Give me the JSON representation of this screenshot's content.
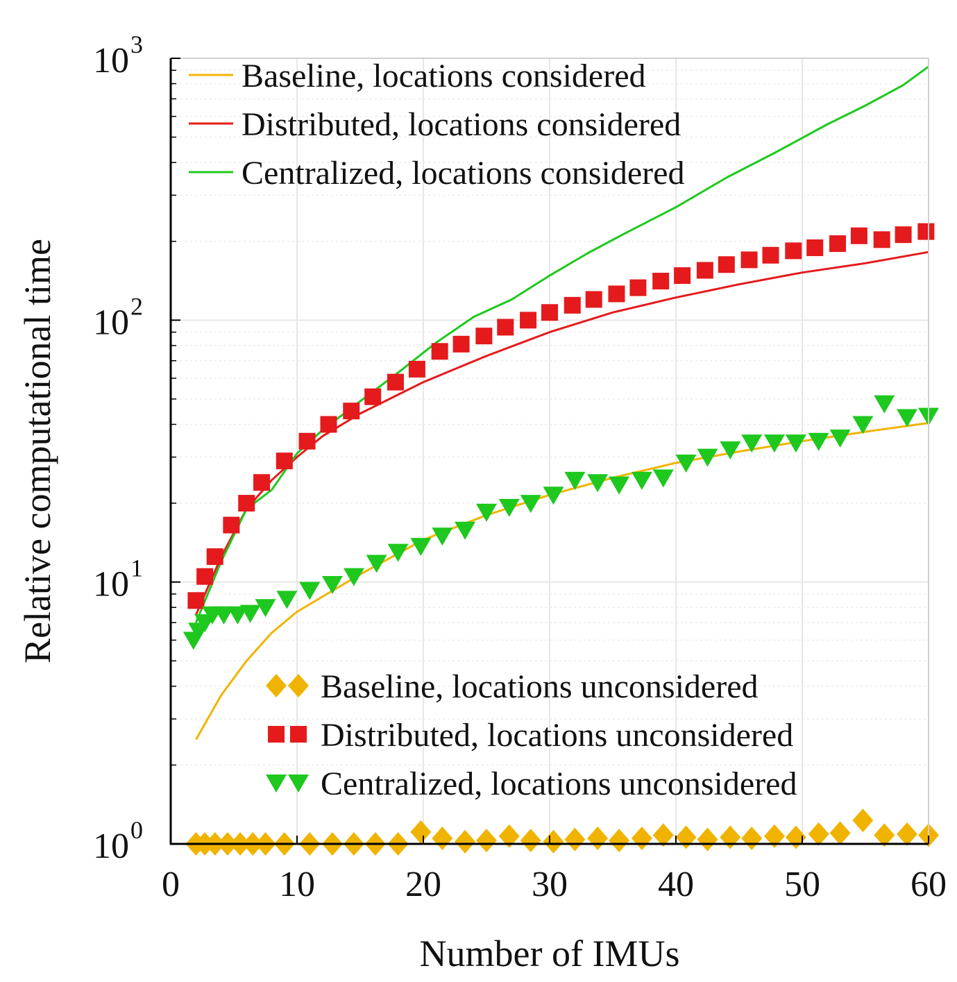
{
  "chart_data": {
    "type": "line+scatter",
    "xlabel": "Number of IMUs",
    "ylabel": "Relative computational time",
    "xscale": "linear",
    "yscale": "log",
    "xlim": [
      0,
      60
    ],
    "ylim": [
      1,
      1000
    ],
    "xticks": [
      0,
      10,
      20,
      30,
      40,
      50,
      60
    ],
    "yticks": [
      {
        "value": 1,
        "base": "10",
        "exp": "0"
      },
      {
        "value": 10,
        "base": "10",
        "exp": "1"
      },
      {
        "value": 100,
        "base": "10",
        "exp": "2"
      },
      {
        "value": 1000,
        "base": "10",
        "exp": "3"
      }
    ],
    "grid": true,
    "legends": [
      {
        "placement": "top-left",
        "entries": [
          "Baseline, locations considered",
          "Distributed, locations considered",
          "Centralized, locations considered"
        ]
      },
      {
        "placement": "bottom-center",
        "entries": [
          "Baseline, locations unconsidered",
          "Distributed, locations unconsidered",
          "Centralized, locations unconsidered"
        ]
      }
    ],
    "series": [
      {
        "name": "Baseline, locations considered",
        "kind": "line",
        "color": "#f0b400",
        "x": [
          2,
          4,
          6,
          8,
          10,
          15,
          20,
          25,
          30,
          35,
          40,
          45,
          50,
          55,
          60
        ],
        "y": [
          2.5,
          3.7,
          5.0,
          6.4,
          7.7,
          10.7,
          14.5,
          18.0,
          21.5,
          25.0,
          28.5,
          31.5,
          34.5,
          37.5,
          40.5
        ]
      },
      {
        "name": "Distributed, locations considered",
        "kind": "line",
        "color": "#e41a1c",
        "x": [
          2,
          4,
          6,
          8,
          10,
          12,
          15,
          20,
          25,
          30,
          35,
          40,
          45,
          50,
          55,
          60
        ],
        "y": [
          7.5,
          12.5,
          19.0,
          24.5,
          30.0,
          36.0,
          44.0,
          58.0,
          73.0,
          90.0,
          107.0,
          122.0,
          137.0,
          152.0,
          165.0,
          182.0
        ]
      },
      {
        "name": "Centralized, locations considered",
        "kind": "line",
        "color": "#1ec81e",
        "x": [
          2,
          4,
          6,
          8,
          10,
          12,
          15,
          18,
          21,
          24,
          27,
          30,
          33,
          36,
          40,
          44,
          48,
          52,
          55,
          58,
          60
        ],
        "y": [
          7.0,
          12.0,
          19.0,
          22.5,
          31.0,
          38.0,
          49.0,
          63.0,
          82.0,
          103.0,
          120.0,
          148.0,
          180.0,
          215.0,
          270.0,
          350.0,
          440.0,
          560.0,
          660.0,
          790.0,
          930.0
        ]
      },
      {
        "name": "Baseline, locations unconsidered",
        "kind": "marker",
        "marker": "diamond",
        "color": "#f0b400",
        "x": [
          2,
          2.7,
          3.5,
          4.5,
          5.5,
          6.5,
          7.5,
          9,
          11,
          12.8,
          14.5,
          16.2,
          18,
          19.8,
          21.5,
          23.3,
          25,
          26.8,
          28.5,
          30.3,
          32,
          33.8,
          35.5,
          37.3,
          39,
          40.8,
          42.5,
          44.3,
          46,
          47.8,
          49.5,
          51.3,
          53,
          54.8,
          56.5,
          58.3,
          60
        ],
        "y": [
          1.0,
          1.0,
          1.0,
          1.0,
          1.0,
          1.0,
          1.0,
          1.0,
          1.0,
          1.0,
          1.0,
          1.0,
          1.0,
          1.11,
          1.05,
          1.02,
          1.03,
          1.07,
          1.03,
          1.02,
          1.04,
          1.05,
          1.03,
          1.05,
          1.08,
          1.06,
          1.04,
          1.06,
          1.05,
          1.07,
          1.06,
          1.09,
          1.1,
          1.23,
          1.08,
          1.09,
          1.08
        ]
      },
      {
        "name": "Distributed, locations unconsidered",
        "kind": "marker",
        "marker": "square",
        "color": "#e41a1c",
        "x": [
          2,
          2.7,
          3.5,
          4.8,
          6,
          7.2,
          9,
          10.8,
          12.5,
          14.3,
          16,
          17.8,
          19.5,
          21.3,
          23,
          24.8,
          26.5,
          28.3,
          30,
          31.8,
          33.5,
          35.3,
          37,
          38.8,
          40.5,
          42.3,
          44,
          45.8,
          47.5,
          49.3,
          51,
          52.8,
          54.5,
          56.3,
          58,
          59.8
        ],
        "y": [
          8.5,
          10.5,
          12.5,
          16.5,
          20.0,
          24.0,
          29.0,
          34.5,
          40.0,
          45.0,
          51.0,
          58.0,
          65.0,
          76.0,
          81.0,
          87.0,
          94.0,
          100.0,
          107.0,
          114.0,
          120.0,
          126.0,
          133.0,
          141.0,
          148.0,
          155.0,
          163.0,
          170.0,
          177.0,
          184.0,
          189.0,
          196.0,
          210.0,
          203.0,
          212.0,
          218.0
        ]
      },
      {
        "name": "Centralized, locations unconsidered",
        "kind": "marker",
        "marker": "triangle-down",
        "color": "#1ec81e",
        "x": [
          1.8,
          2.2,
          2.7,
          3.3,
          4.2,
          5.3,
          6.3,
          7.5,
          9.2,
          11,
          12.8,
          14.5,
          16.3,
          18,
          19.8,
          21.5,
          23.3,
          25,
          26.8,
          28.5,
          30.3,
          32,
          33.8,
          35.5,
          37.3,
          39,
          40.8,
          42.5,
          44.3,
          46,
          47.8,
          49.5,
          51.3,
          53,
          54.8,
          56.5,
          58.3,
          60
        ],
        "y": [
          6.0,
          6.5,
          7.0,
          7.5,
          7.5,
          7.5,
          7.6,
          8.0,
          8.6,
          9.3,
          9.8,
          10.5,
          11.8,
          13.0,
          13.7,
          15.0,
          15.8,
          18.5,
          19.3,
          20.0,
          21.5,
          24.5,
          24.0,
          23.5,
          24.5,
          25.0,
          28.5,
          30.0,
          32.0,
          34.0,
          34.0,
          34.0,
          34.5,
          35.5,
          40.0,
          48.0,
          42.5,
          43.0
        ]
      }
    ]
  }
}
